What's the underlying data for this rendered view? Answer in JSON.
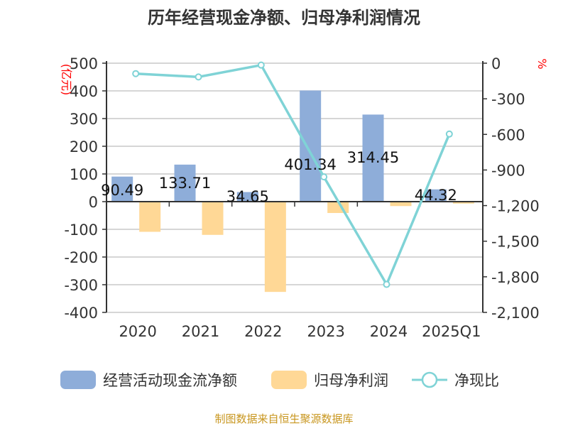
{
  "chart_data": {
    "type": "bar+line",
    "title": "历年经营现金净额、归母净利润情况",
    "categories": [
      "2020",
      "2021",
      "2022",
      "2023",
      "2024",
      "2025Q1"
    ],
    "left_axis": {
      "label": "(亿元)",
      "ylim": [
        -400,
        500
      ],
      "ticks": [
        "500",
        "400",
        "300",
        "200",
        "100",
        "0",
        "-100",
        "-200",
        "-300",
        "-400"
      ],
      "tick_values": [
        500,
        400,
        300,
        200,
        100,
        0,
        -100,
        -200,
        -300,
        -400
      ]
    },
    "right_axis": {
      "label": "%",
      "ylim": [
        -2100,
        0
      ],
      "ticks": [
        "0",
        "-300",
        "-600",
        "-900",
        "-1,200",
        "-1,500",
        "-1,800",
        "-2,100"
      ],
      "tick_values": [
        0,
        -300,
        -600,
        -900,
        -1200,
        -1500,
        -1800,
        -2100
      ]
    },
    "series": [
      {
        "name": "经营活动现金流净额",
        "type": "bar",
        "axis": "left",
        "color": "#8eadd9",
        "values": [
          90.49,
          133.71,
          34.65,
          401.34,
          314.45,
          44.32
        ],
        "labels": [
          "90.49",
          "133.71",
          "34.65",
          "401.34",
          "314.45",
          "44.32"
        ]
      },
      {
        "name": "归母净利润",
        "type": "bar",
        "axis": "left",
        "color": "#ffd896",
        "values": [
          -109,
          -120,
          -326,
          -41,
          -16,
          -7
        ]
      },
      {
        "name": "净现比",
        "type": "line",
        "axis": "right",
        "color": "#7fd3d6",
        "values": [
          -88,
          -116,
          -16,
          -958,
          -1864,
          -597
        ]
      }
    ],
    "grid": true,
    "legend": "bottom"
  },
  "footer": "制图数据来自恒生聚源数据库"
}
